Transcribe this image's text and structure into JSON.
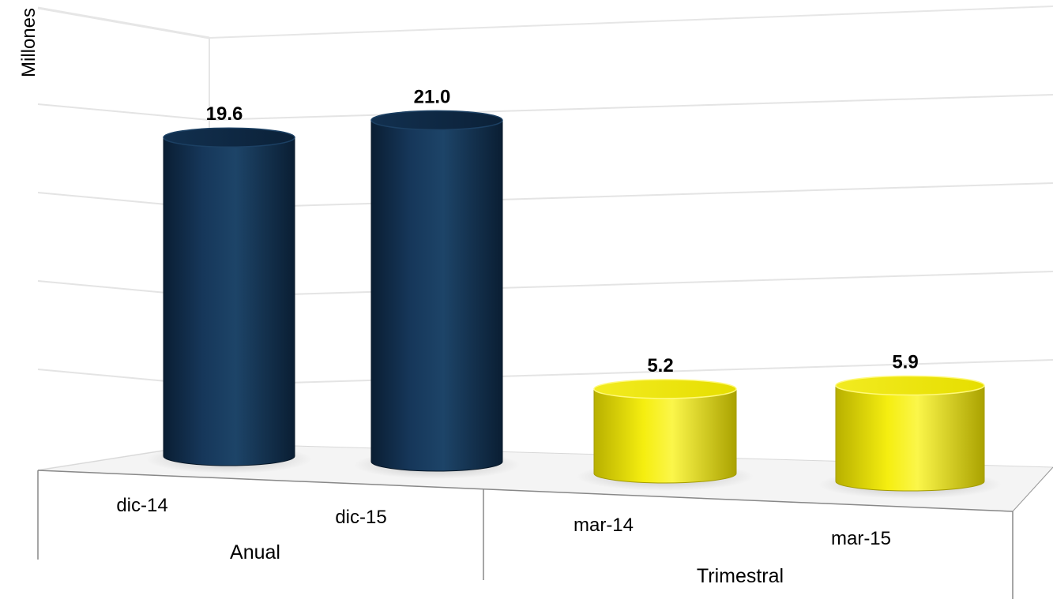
{
  "chart_data": {
    "type": "bar",
    "ylabel": "Millones",
    "categories": [
      "dic-14",
      "dic-15",
      "mar-14",
      "mar-15"
    ],
    "groups": [
      {
        "name": "Anual",
        "categories": [
          "dic-14",
          "dic-15"
        ]
      },
      {
        "name": "Trimestral",
        "categories": [
          "mar-14",
          "mar-15"
        ]
      }
    ],
    "values": [
      19.6,
      21.0,
      5.2,
      5.9
    ],
    "value_labels": [
      "19.6",
      "21.0",
      "5.2",
      "5.9"
    ],
    "bar_colors": [
      "#0f2a45",
      "#0f2a45",
      "#e8e000",
      "#e8e000"
    ],
    "ylim": [
      0,
      25
    ],
    "grid": true,
    "legend": "none"
  }
}
